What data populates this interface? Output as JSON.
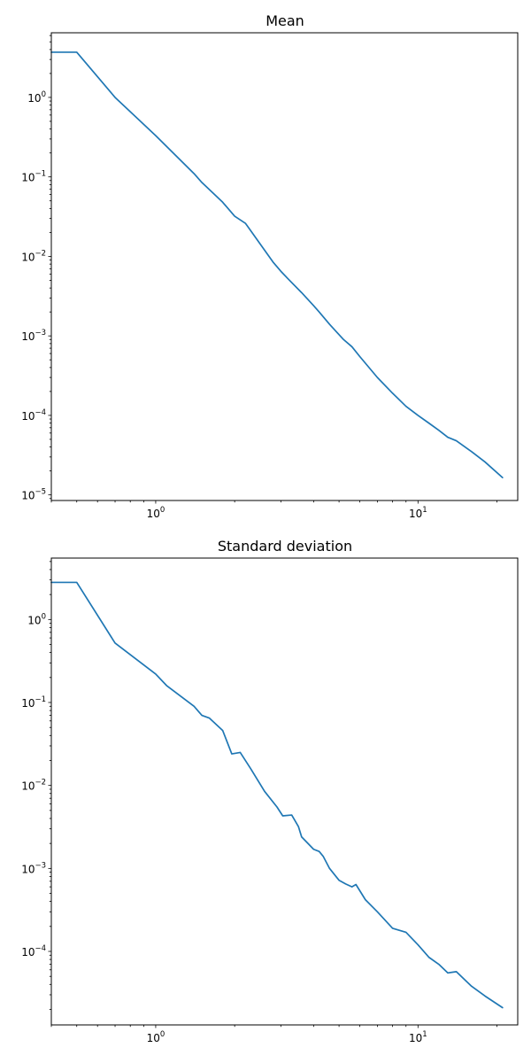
{
  "chart_data": [
    {
      "type": "line",
      "title": "Mean",
      "xscale": "log",
      "yscale": "log",
      "xlim": [
        0.4,
        24
      ],
      "ylim": [
        8.5e-06,
        6.5
      ],
      "xticks": [
        {
          "value": 1,
          "base": "10",
          "exp": "0"
        },
        {
          "value": 10,
          "base": "10",
          "exp": "1"
        }
      ],
      "yticks": [
        {
          "value": 1e-05,
          "base": "10",
          "exp": "−5"
        },
        {
          "value": 0.0001,
          "base": "10",
          "exp": "−4"
        },
        {
          "value": 0.001,
          "base": "10",
          "exp": "−3"
        },
        {
          "value": 0.01,
          "base": "10",
          "exp": "−2"
        },
        {
          "value": 0.1,
          "base": "10",
          "exp": "−1"
        },
        {
          "value": 1,
          "base": "10",
          "exp": "0"
        }
      ],
      "grid": false,
      "series": [
        {
          "color": "#1f77b4",
          "x": [
            0.4,
            0.5,
            0.7,
            1.0,
            1.4,
            1.5,
            1.8,
            2.0,
            2.2,
            2.6,
            2.8,
            3.0,
            3.2,
            3.6,
            4.0,
            4.2,
            4.6,
            5.2,
            5.6,
            6.0,
            7.0,
            8.0,
            9.0,
            10.0,
            11.0,
            12.0,
            13.0,
            14.0,
            16.0,
            18.0,
            21.0
          ],
          "y": [
            3.7,
            3.7,
            1.0,
            0.33,
            0.11,
            0.085,
            0.048,
            0.032,
            0.026,
            0.012,
            0.0085,
            0.0065,
            0.0052,
            0.0035,
            0.0024,
            0.002,
            0.0014,
            0.0009,
            0.00073,
            0.00055,
            0.0003,
            0.00019,
            0.00013,
            0.0001,
            8e-05,
            6.5e-05,
            5.3e-05,
            4.8e-05,
            3.5e-05,
            2.6e-05,
            1.65e-05
          ]
        }
      ]
    },
    {
      "type": "line",
      "title": "Standard deviation",
      "xscale": "log",
      "yscale": "log",
      "xlim": [
        0.4,
        24
      ],
      "ylim": [
        1.3e-05,
        5.5
      ],
      "xticks": [
        {
          "value": 1,
          "base": "10",
          "exp": "0"
        },
        {
          "value": 10,
          "base": "10",
          "exp": "1"
        }
      ],
      "yticks": [
        {
          "value": 0.0001,
          "base": "10",
          "exp": "−4"
        },
        {
          "value": 0.001,
          "base": "10",
          "exp": "−3"
        },
        {
          "value": 0.01,
          "base": "10",
          "exp": "−2"
        },
        {
          "value": 0.1,
          "base": "10",
          "exp": "−1"
        },
        {
          "value": 1,
          "base": "10",
          "exp": "0"
        }
      ],
      "grid": false,
      "series": [
        {
          "color": "#1f77b4",
          "x": [
            0.4,
            0.5,
            0.7,
            1.0,
            1.1,
            1.4,
            1.5,
            1.6,
            1.8,
            1.95,
            2.1,
            2.3,
            2.6,
            2.9,
            3.05,
            3.3,
            3.5,
            3.6,
            4.0,
            4.2,
            4.35,
            4.6,
            5.0,
            5.3,
            5.6,
            5.8,
            6.3,
            7.0,
            8.0,
            9.0,
            10.0,
            11.0,
            12.0,
            13.0,
            14.0,
            16.0,
            18.0,
            21.0
          ],
          "y": [
            2.8,
            2.8,
            0.52,
            0.22,
            0.16,
            0.09,
            0.07,
            0.065,
            0.046,
            0.024,
            0.025,
            0.016,
            0.0085,
            0.0055,
            0.0043,
            0.0044,
            0.0032,
            0.0024,
            0.0017,
            0.0016,
            0.0014,
            0.001,
            0.00072,
            0.00065,
            0.0006,
            0.00064,
            0.00042,
            0.0003,
            0.00019,
            0.00017,
            0.00012,
            8.5e-05,
            7e-05,
            5.5e-05,
            5.7e-05,
            3.8e-05,
            2.9e-05,
            2.1e-05
          ]
        }
      ]
    }
  ]
}
